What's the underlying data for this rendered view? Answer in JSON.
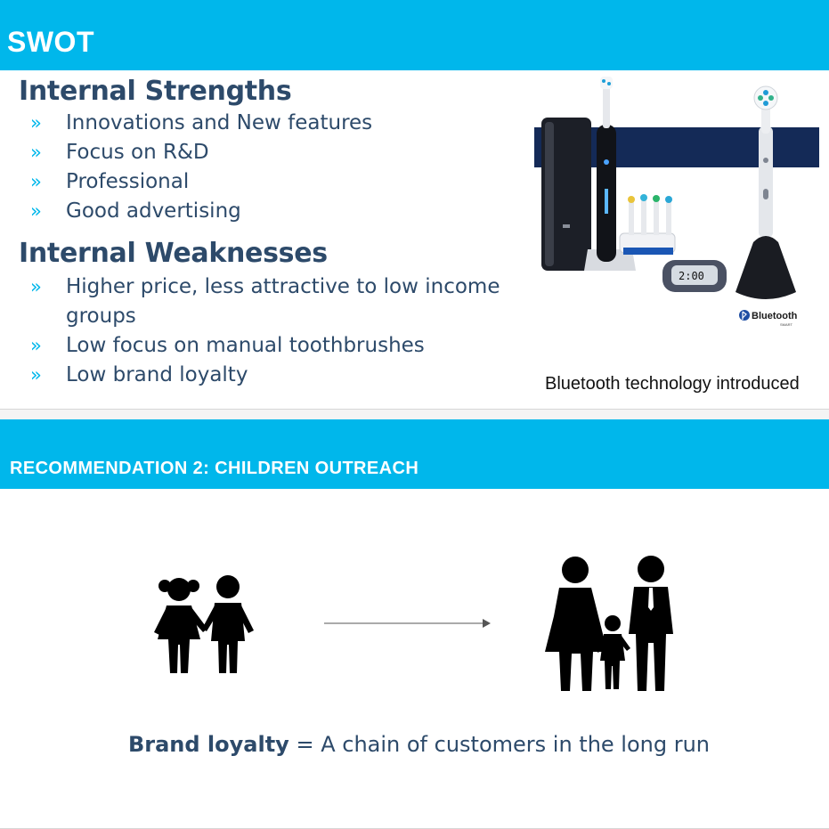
{
  "slide1": {
    "title": "SWOT",
    "strengths": {
      "heading": "Internal Strengths",
      "items": [
        "Innovations and New features",
        "Focus on R&D",
        "Professional",
        "Good advertising"
      ]
    },
    "weaknesses": {
      "heading": "Internal Weaknesses",
      "items": [
        "Higher price, less attractive to low income groups",
        "Low focus on manual toothbrushes",
        "Low brand loyalty"
      ]
    },
    "bullet": "»",
    "image": {
      "timer_text": "2:00",
      "logo_text": "Bluetooth",
      "logo_subtext": "SMART",
      "caption": "Bluetooth technology introduced"
    }
  },
  "slide2": {
    "title": "RECOMMENDATION 2: CHILDREN OUTREACH",
    "statement_bold": "Brand loyalty",
    "statement_rest": " = A chain of customers in the long run"
  },
  "colors": {
    "accent": "#00b7eb",
    "heading_text": "#2d4a6a",
    "product_band": "#142a57"
  }
}
